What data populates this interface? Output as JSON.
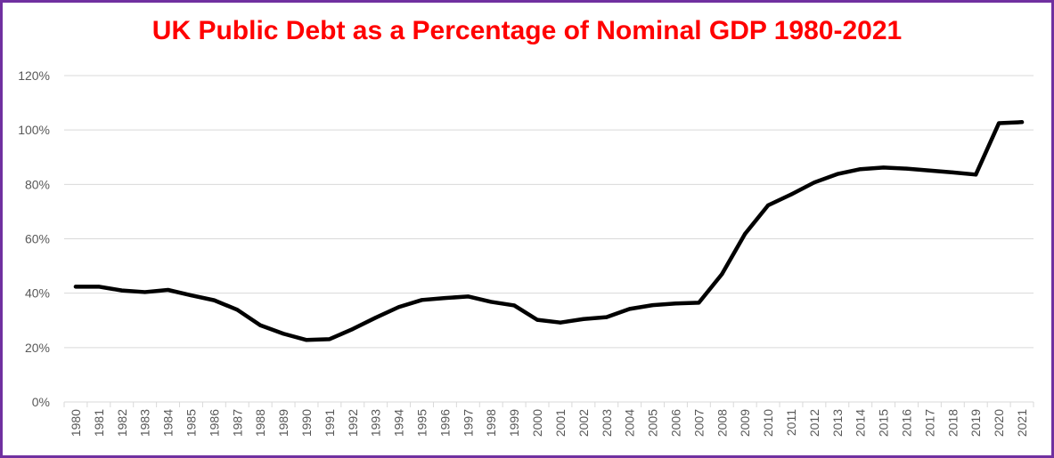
{
  "chart_data": {
    "type": "line",
    "title": "UK Public Debt as a Percentage of Nominal GDP 1980-2021",
    "xlabel": "",
    "ylabel": "",
    "ylim": [
      0,
      120
    ],
    "yticks": [
      "0%",
      "20%",
      "40%",
      "60%",
      "80%",
      "100%",
      "120%"
    ],
    "ytick_values": [
      0,
      20,
      40,
      60,
      80,
      100,
      120
    ],
    "categories": [
      "1980",
      "1981",
      "1982",
      "1983",
      "1984",
      "1985",
      "1986",
      "1987",
      "1988",
      "1989",
      "1990",
      "1991",
      "1992",
      "1993",
      "1994",
      "1995",
      "1996",
      "1997",
      "1998",
      "1999",
      "2000",
      "2001",
      "2002",
      "2003",
      "2004",
      "2005",
      "2006",
      "2007",
      "2008",
      "2009",
      "2010",
      "2011",
      "2012",
      "2013",
      "2014",
      "2015",
      "2016",
      "2017",
      "2018",
      "2019",
      "2020",
      "2021"
    ],
    "series": [
      {
        "values": [
          42.4,
          42.4,
          41.0,
          40.4,
          41.2,
          39.2,
          37.4,
          33.9,
          28.2,
          25.1,
          22.8,
          23.1,
          26.8,
          31.0,
          34.9,
          37.5,
          38.2,
          38.8,
          36.8,
          35.5,
          30.2,
          29.2,
          30.5,
          31.2,
          34.2,
          35.6,
          36.2,
          36.5,
          47.0,
          61.8,
          72.3,
          76.3,
          80.7,
          83.8,
          85.6,
          86.2,
          85.8,
          85.1,
          84.4,
          83.6,
          102.5,
          102.9
        ],
        "color": "#000000"
      }
    ],
    "grid": true,
    "legend": "none"
  },
  "colors": {
    "border": "#7030a0",
    "title": "#ff0000",
    "line": "#000000",
    "grid": "#d9d9d9",
    "tick_text": "#595959"
  }
}
